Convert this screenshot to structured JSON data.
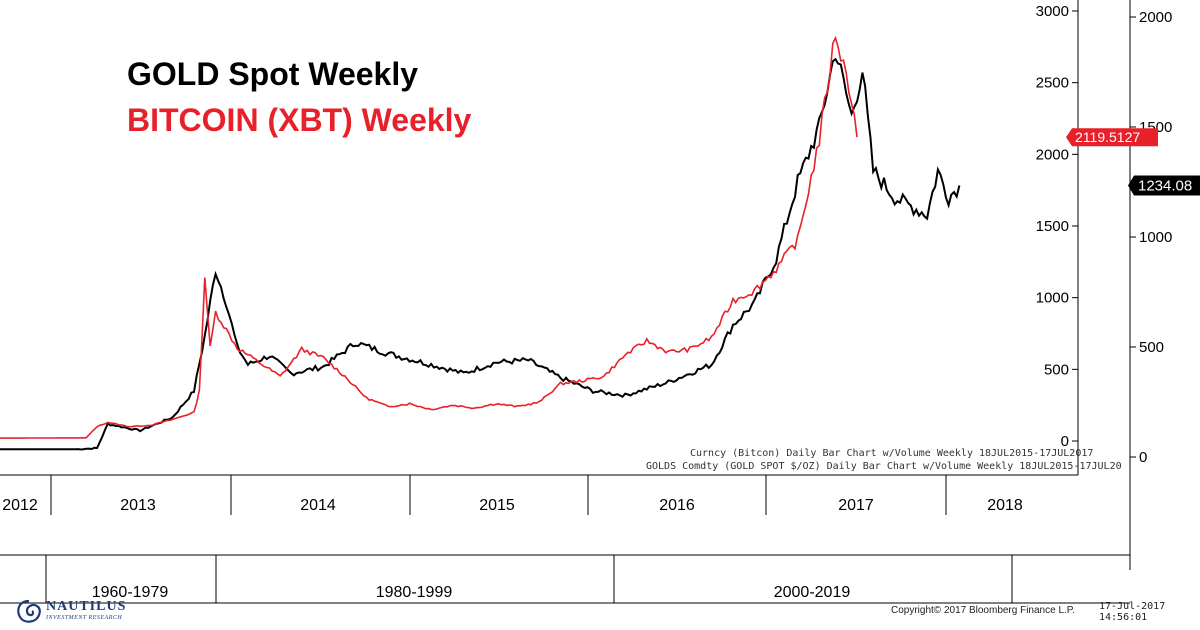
{
  "titles": {
    "gold": "GOLD Spot Weekly",
    "bitcoin": "BITCOIN (XBT) Weekly"
  },
  "colors": {
    "gold": "#000000",
    "bitcoin": "#e8202a"
  },
  "legend": {
    "line1": "Curncy (Bitcon) Daily Bar Chart w/Volume  Weekly 18JUL2015-17JUL2017",
    "line2": "GOLDS Comdty (GOLD SPOT $/OZ) Daily Bar Chart w/Volume  Weekly 18JUL2015-17JUL20"
  },
  "footer": {
    "logo_name": "NAUTILUS",
    "logo_sub": "INVESTMENT RESEARCH",
    "copyright": "Copyright© 2017 Bloomberg Finance L.P.",
    "timestamp": "17-Jul-2017 14:56:01"
  },
  "chart_data": {
    "type": "line",
    "title": "GOLD Spot Weekly / BITCOIN (XBT) Weekly",
    "x_ticks_bitcoin_years": [
      "2012",
      "2013",
      "2014",
      "2015",
      "2016",
      "2017",
      "2018"
    ],
    "x_ticks_gold_decades": [
      "1960-1979",
      "1980-1999",
      "2000-2019"
    ],
    "y_left_bitcoin": {
      "ticks": [
        0,
        500,
        1000,
        1500,
        2000,
        2500,
        3000
      ],
      "last_value": "2119.5127"
    },
    "y_right_gold": {
      "ticks": [
        0,
        500,
        1000,
        1500,
        2000
      ],
      "last_value": "1234.08"
    },
    "series": [
      {
        "name": "BITCOIN (XBT) Weekly",
        "axis": "left",
        "points": [
          [
            0.0,
            20
          ],
          [
            0.08,
            22
          ],
          [
            0.09,
            100
          ],
          [
            0.1,
            130
          ],
          [
            0.12,
            100
          ],
          [
            0.14,
            110
          ],
          [
            0.16,
            150
          ],
          [
            0.18,
            200
          ],
          [
            0.185,
            350
          ],
          [
            0.19,
            1150
          ],
          [
            0.195,
            650
          ],
          [
            0.2,
            900
          ],
          [
            0.22,
            650
          ],
          [
            0.24,
            550
          ],
          [
            0.26,
            450
          ],
          [
            0.28,
            640
          ],
          [
            0.3,
            580
          ],
          [
            0.32,
            450
          ],
          [
            0.34,
            300
          ],
          [
            0.36,
            240
          ],
          [
            0.38,
            260
          ],
          [
            0.4,
            220
          ],
          [
            0.42,
            250
          ],
          [
            0.44,
            230
          ],
          [
            0.46,
            260
          ],
          [
            0.48,
            240
          ],
          [
            0.5,
            270
          ],
          [
            0.52,
            400
          ],
          [
            0.54,
            420
          ],
          [
            0.56,
            450
          ],
          [
            0.58,
            600
          ],
          [
            0.6,
            700
          ],
          [
            0.62,
            620
          ],
          [
            0.64,
            640
          ],
          [
            0.66,
            720
          ],
          [
            0.68,
            980
          ],
          [
            0.7,
            1050
          ],
          [
            0.72,
            1200
          ],
          [
            0.74,
            1400
          ],
          [
            0.76,
            2100
          ],
          [
            0.775,
            2850
          ],
          [
            0.785,
            2550
          ],
          [
            0.79,
            2400
          ],
          [
            0.795,
            2120
          ]
        ]
      },
      {
        "name": "GOLD Spot Weekly",
        "axis": "right",
        "points": [
          [
            0.0,
            35
          ],
          [
            0.07,
            35
          ],
          [
            0.09,
            40
          ],
          [
            0.1,
            150
          ],
          [
            0.12,
            130
          ],
          [
            0.13,
            120
          ],
          [
            0.16,
            180
          ],
          [
            0.18,
            300
          ],
          [
            0.19,
            550
          ],
          [
            0.2,
            850
          ],
          [
            0.21,
            700
          ],
          [
            0.22,
            500
          ],
          [
            0.23,
            420
          ],
          [
            0.25,
            460
          ],
          [
            0.27,
            380
          ],
          [
            0.3,
            410
          ],
          [
            0.33,
            520
          ],
          [
            0.36,
            470
          ],
          [
            0.4,
            420
          ],
          [
            0.43,
            380
          ],
          [
            0.46,
            430
          ],
          [
            0.49,
            440
          ],
          [
            0.52,
            360
          ],
          [
            0.55,
            300
          ],
          [
            0.58,
            280
          ],
          [
            0.62,
            340
          ],
          [
            0.66,
            420
          ],
          [
            0.68,
            600
          ],
          [
            0.7,
            700
          ],
          [
            0.72,
            900
          ],
          [
            0.74,
            1250
          ],
          [
            0.76,
            1500
          ],
          [
            0.775,
            1850
          ],
          [
            0.79,
            1550
          ],
          [
            0.8,
            1760
          ],
          [
            0.81,
            1300
          ],
          [
            0.83,
            1180
          ],
          [
            0.86,
            1100
          ],
          [
            0.87,
            1300
          ],
          [
            0.88,
            1180
          ],
          [
            0.89,
            1234.08
          ]
        ]
      }
    ]
  }
}
